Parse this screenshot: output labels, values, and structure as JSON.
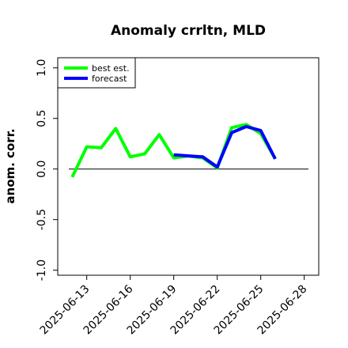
{
  "chart_data": {
    "type": "line",
    "title": "Anomaly crrltn, MLD",
    "ylabel": "anom. corr.",
    "xlabel": "",
    "xlim": [
      "2025-06-11",
      "2025-06-29"
    ],
    "ylim": [
      -1.05,
      1.1
    ],
    "yticks": [
      "-1.0",
      "-0.5",
      "0.0",
      "0.5",
      "1.0"
    ],
    "ytick_values": [
      -1.0,
      -0.5,
      0.0,
      0.5,
      1.0
    ],
    "xticks": [
      "2025-06-13",
      "2025-06-16",
      "2025-06-19",
      "2025-06-22",
      "2025-06-25",
      "2025-06-28"
    ],
    "highlight_tick": "2025-06-19",
    "highlight_color": "#228b22",
    "zero_line": 0.0,
    "legend_position": "top-left",
    "series": [
      {
        "name": "best est.",
        "color": "#00ff00",
        "x": [
          "2025-06-12",
          "2025-06-13",
          "2025-06-14",
          "2025-06-15",
          "2025-06-16",
          "2025-06-17",
          "2025-06-18",
          "2025-06-19",
          "2025-06-20",
          "2025-06-21",
          "2025-06-22",
          "2025-06-23",
          "2025-06-24",
          "2025-06-25",
          "2025-06-26"
        ],
        "values": [
          -0.08,
          0.22,
          0.21,
          0.4,
          0.12,
          0.15,
          0.34,
          0.11,
          0.13,
          0.11,
          0.01,
          0.41,
          0.44,
          0.35,
          0.1
        ]
      },
      {
        "name": "forecast",
        "color": "#0000ff",
        "x": [
          "2025-06-19",
          "2025-06-20",
          "2025-06-21",
          "2025-06-22",
          "2025-06-23",
          "2025-06-24",
          "2025-06-25",
          "2025-06-26"
        ],
        "values": [
          0.14,
          0.13,
          0.12,
          0.02,
          0.36,
          0.42,
          0.38,
          0.1
        ]
      }
    ]
  }
}
